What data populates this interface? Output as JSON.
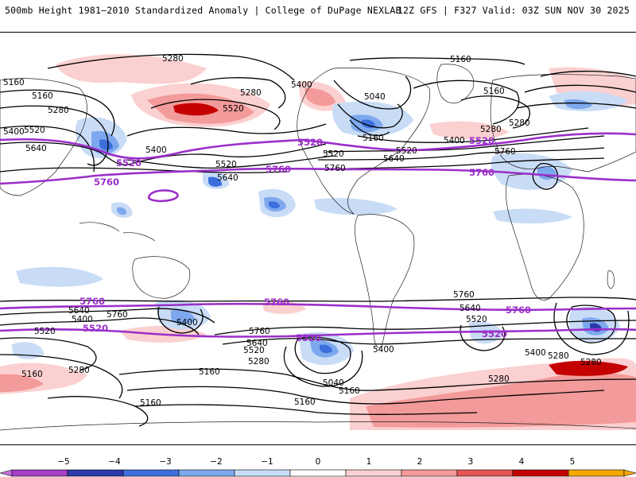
{
  "header": {
    "left": "500mb Height 1981–2010 Standardized Anomaly | College of DuPage NEXLAB",
    "right": "12Z GFS | F327 Valid: 03Z SUN NOV 30 2025"
  },
  "contour_labels": {
    "h5280_a": "5280",
    "h5160_a": "5160",
    "h5400_a": "5400",
    "h5520_a": "5520",
    "h5640_a": "5640",
    "h5160_b": "5160",
    "h5280_b": "5280",
    "h5400_b": "5400",
    "h5520_b": "5520",
    "h5520_c": "5520",
    "h5640_b": "5640",
    "h5280_c": "5280",
    "h5520_d": "5520",
    "h5400_c": "5400",
    "h5040_a": "5040",
    "h5160_c": "5160",
    "h5520_e": "5520",
    "h5640_c": "5640",
    "h5760_a": "5760",
    "h5160_d": "5160",
    "h5280_d": "5280",
    "h5400_d": "5400",
    "h5160_e": "5160",
    "h5280_e": "5280",
    "h5760_b": "5760",
    "s5640_a": "5640",
    "s5400_a": "5400",
    "s5520_a": "5520",
    "s5160_a": "5160",
    "s5280_a": "5280",
    "s5760_a": "5760",
    "s5400_b": "5400",
    "s5160_b": "5160",
    "s5160_c": "5160",
    "s5760_b": "5760",
    "s5640_b": "5640",
    "s5520_b": "5520",
    "s5280_b": "5280",
    "s5400_c": "5400",
    "s5040_a": "5040",
    "s5160_d": "5160",
    "s5160_e": "5160",
    "s5760_c": "5760",
    "s5640_c": "5640",
    "s5520_c": "5520",
    "s5400_d": "5400",
    "s5280_c": "5280",
    "s5280_d": "5280",
    "s5280_e": "5280"
  },
  "highlight_labels": {
    "n5520_a": "5520",
    "n5760_a": "5760",
    "n5520_b": "5520",
    "n5760_b": "5760",
    "n5520_c": "5520",
    "n5760_c": "5760",
    "s5760_a": "5760",
    "s5520_a": "5520",
    "s5760_b": "5760",
    "s5520_b": "5520",
    "s5760_c": "5760",
    "s5520_c": "5520"
  },
  "colorbar": {
    "ticks": [
      "−5",
      "−4",
      "−3",
      "−2",
      "−1",
      "0",
      "1",
      "2",
      "3",
      "4",
      "5"
    ],
    "colors": [
      "#a63fc8",
      "#2b3aa8",
      "#3c6fdc",
      "#7ea8ee",
      "#c8dcf6",
      "#ffffff",
      "#fbd0d0",
      "#f39a9a",
      "#e65454",
      "#c40000",
      "#f5a700"
    ]
  }
}
